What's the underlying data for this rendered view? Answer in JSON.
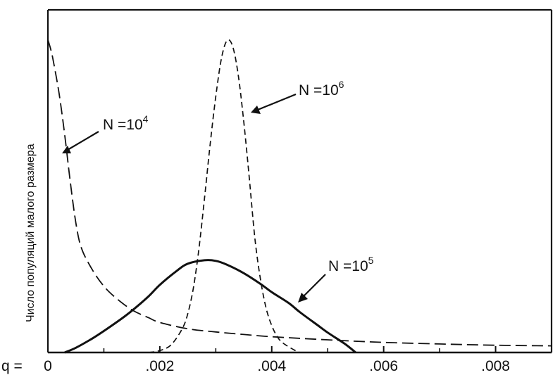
{
  "chart_data": {
    "type": "line",
    "xlabel": "q =",
    "ylabel": "Число популяций малого размера",
    "xlim": [
      0,
      0.009
    ],
    "ylim": [
      0,
      100
    ],
    "x_ticks": [
      {
        "value": 0,
        "label": "0"
      },
      {
        "value": 0.002,
        "label": ".002"
      },
      {
        "value": 0.004,
        "label": ".004"
      },
      {
        "value": 0.006,
        "label": ".006"
      },
      {
        "value": 0.008,
        "label": ".008"
      }
    ],
    "grid": false,
    "series": [
      {
        "name": "N = 10⁴",
        "base": "N =10",
        "exponent": "4",
        "style": "long-dash",
        "color": "#111111",
        "x": [
          0.0,
          5e-05,
          0.0001,
          0.0002,
          0.0003,
          0.0004,
          0.0005,
          0.0006,
          0.0008,
          0.001,
          0.0012,
          0.0015,
          0.0018,
          0.002,
          0.0025,
          0.003,
          0.0035,
          0.004,
          0.005,
          0.006,
          0.007,
          0.008,
          0.009
        ],
        "y": [
          99,
          96,
          92,
          82,
          69,
          54,
          41,
          33,
          26,
          21,
          17.5,
          13.5,
          11,
          9.5,
          7.5,
          6.5,
          5.7,
          5.0,
          4.0,
          3.2,
          2.7,
          2.3,
          2.1
        ]
      },
      {
        "name": "N = 10⁵",
        "base": "N =10",
        "exponent": "5",
        "style": "solid",
        "color": "#111111",
        "x": [
          0.0003,
          0.0005,
          0.0008,
          0.001,
          0.0013,
          0.0015,
          0.0018,
          0.002,
          0.0023,
          0.0025,
          0.0028,
          0.003,
          0.0032,
          0.0035,
          0.0038,
          0.004,
          0.0043,
          0.0045,
          0.0048,
          0.005,
          0.0053,
          0.0055
        ],
        "y": [
          0,
          1.5,
          4.5,
          6.8,
          10.5,
          13.2,
          17.8,
          21.4,
          25.8,
          28.1,
          29.2,
          29.0,
          27.8,
          25.1,
          21.7,
          19.1,
          15.7,
          12.8,
          8.9,
          6.3,
          2.8,
          0
        ]
      },
      {
        "name": "N = 10⁶",
        "base": "N =10",
        "exponent": "6",
        "style": "short-dash",
        "color": "#111111",
        "x": [
          0.0018,
          0.002,
          0.0022,
          0.0024,
          0.0025,
          0.0026,
          0.0027,
          0.0028,
          0.0029,
          0.003,
          0.0031,
          0.0032,
          0.0033,
          0.0034,
          0.0035,
          0.0036,
          0.0037,
          0.0038,
          0.0039,
          0.004,
          0.0041,
          0.0042,
          0.0044,
          0.0045
        ],
        "y": [
          0,
          0.6,
          2.4,
          7.5,
          12.3,
          20.5,
          33,
          49,
          66,
          81,
          93,
          98.7,
          97,
          88,
          73,
          55,
          36,
          23,
          14,
          8.5,
          5,
          3,
          0.8,
          0
        ]
      }
    ],
    "annotations": [
      {
        "series": "N = 10⁴",
        "position": "left"
      },
      {
        "series": "N = 10⁶",
        "position": "upper-right"
      },
      {
        "series": "N = 10⁵",
        "position": "right"
      }
    ]
  }
}
